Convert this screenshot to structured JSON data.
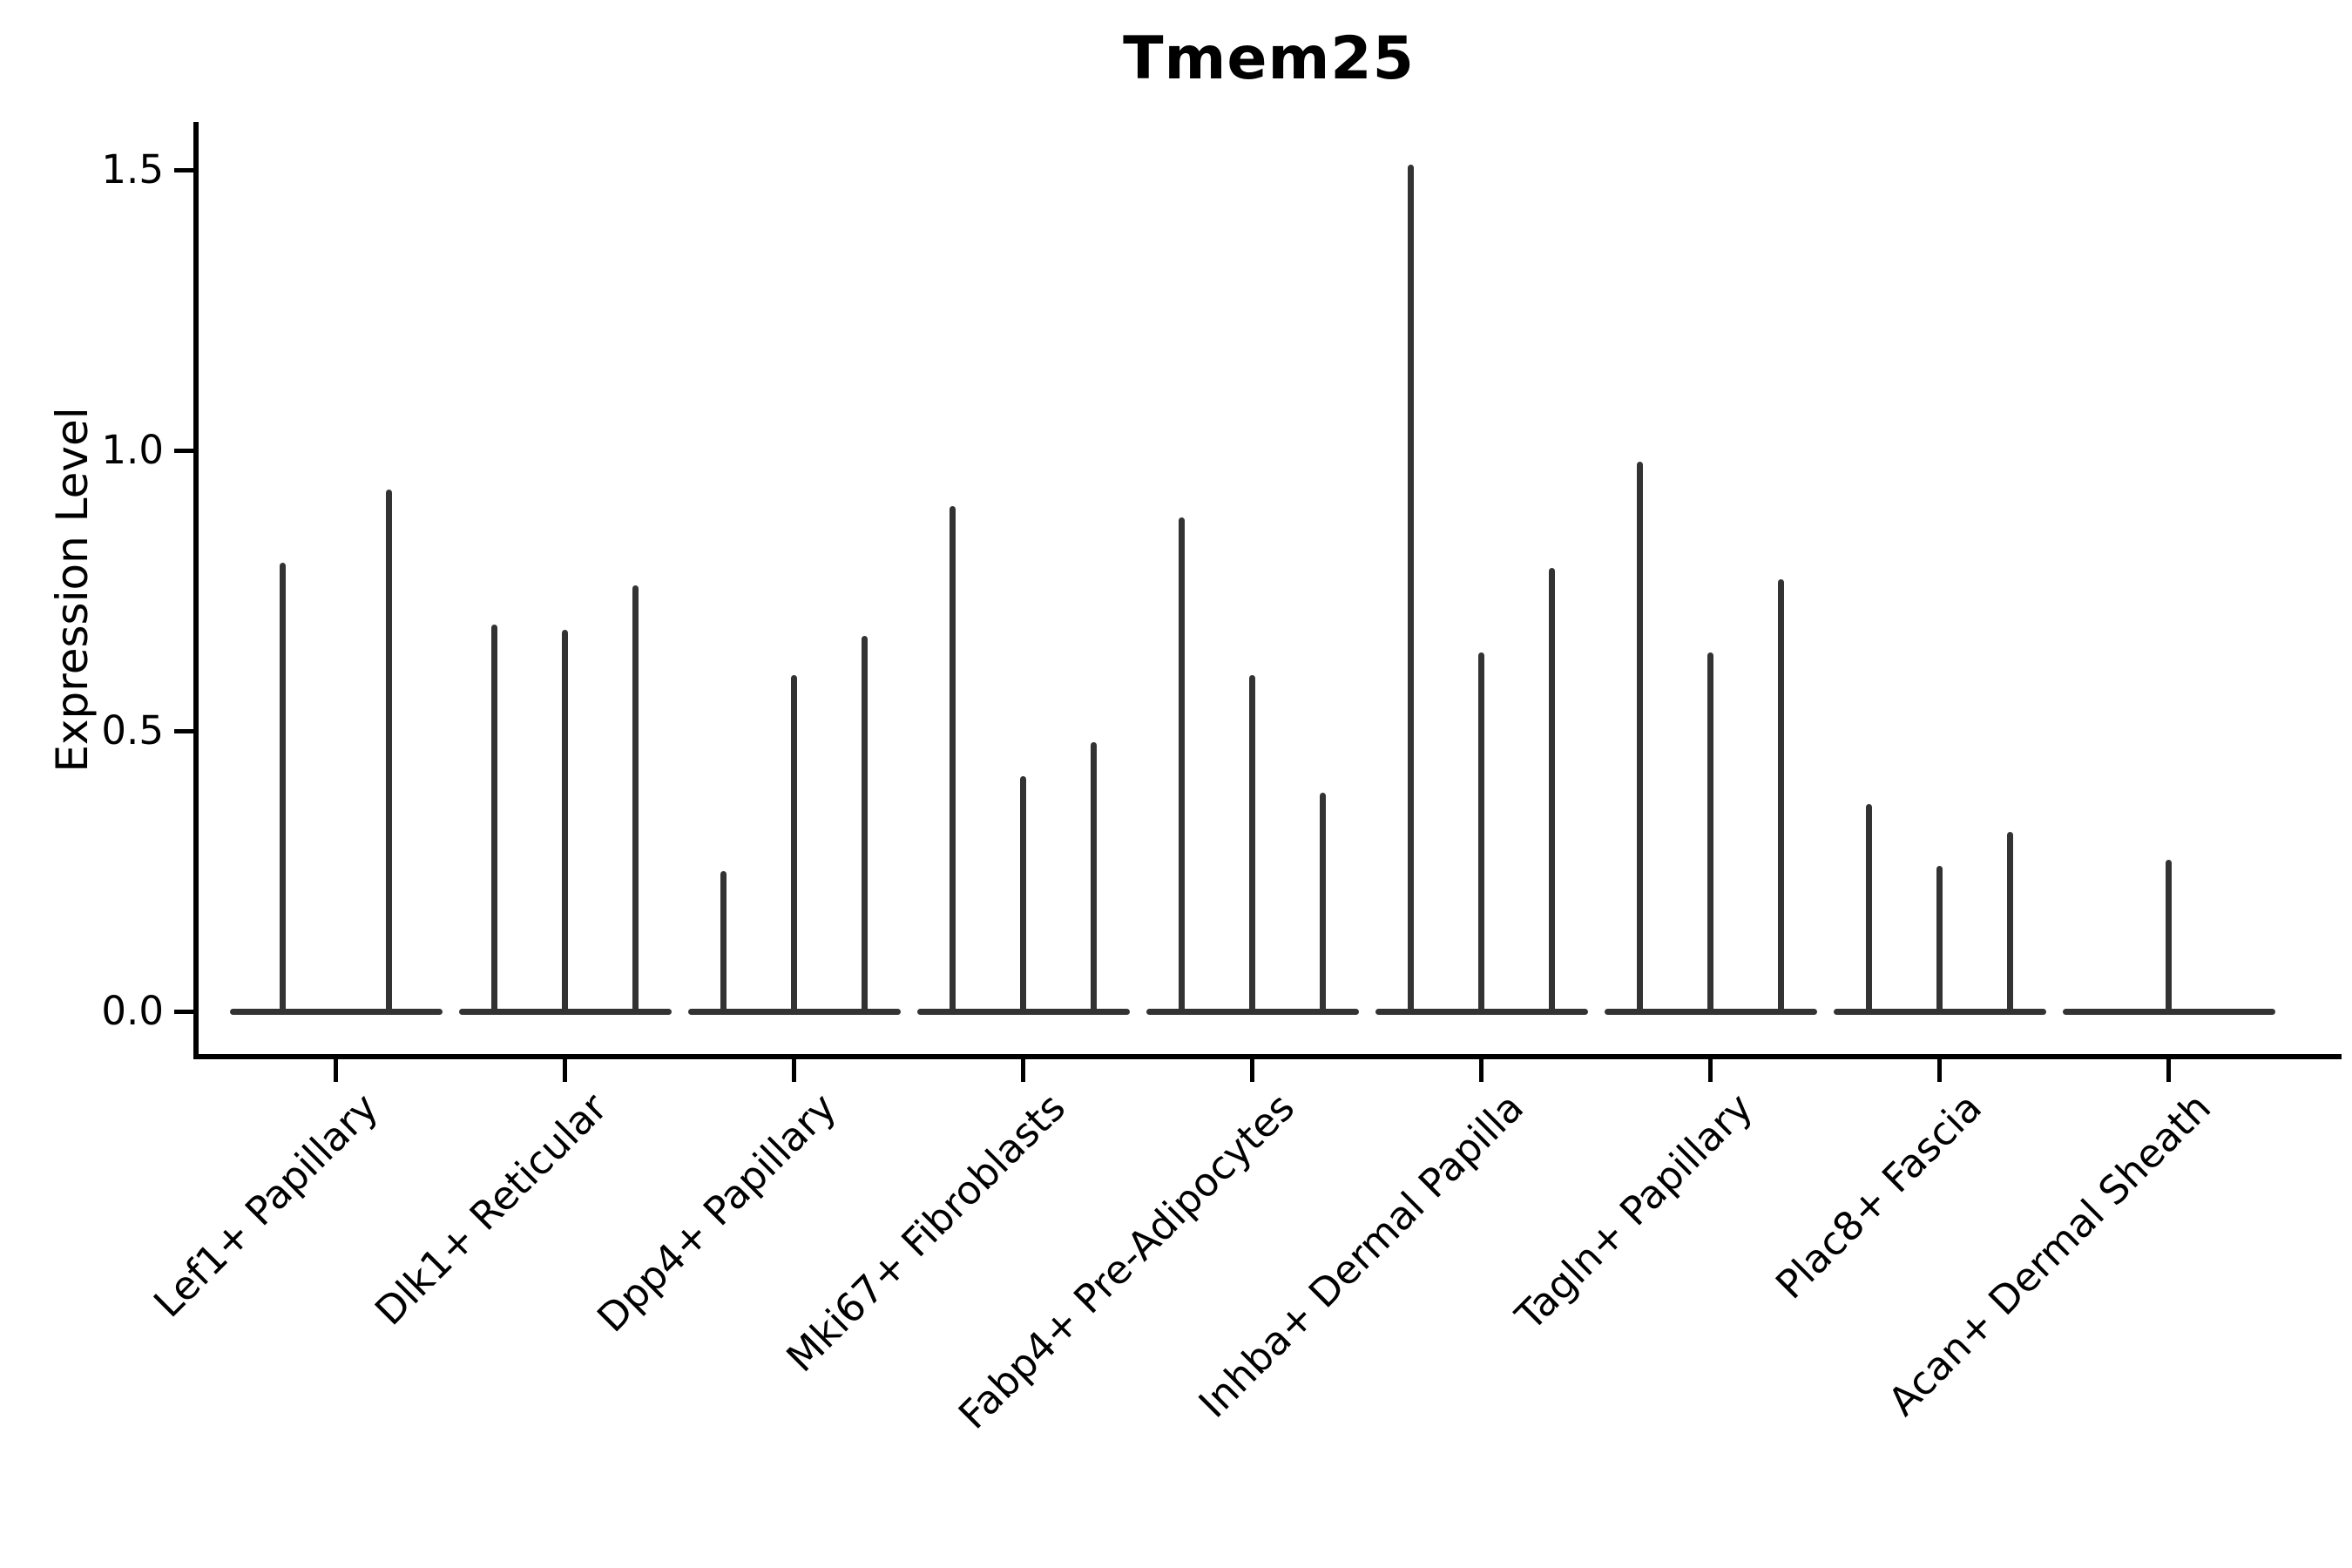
{
  "figure": {
    "title": "Tmem25",
    "ylabel": "Expression Level"
  },
  "chart_data": {
    "type": "violin",
    "title": "Tmem25",
    "xlabel": "",
    "ylabel": "Expression Level",
    "yticks": [
      0.0,
      0.5,
      1.0,
      1.5
    ],
    "ylim": [
      -0.08,
      1.59
    ],
    "grid": false,
    "legend": "none",
    "description": "Thin spike violins (sparse single-cell expression); each category shows flat zero baseline with narrow vertical density spikes whose tops mark the max expression.",
    "categories": [
      "Lef1+ Papillary",
      "Dlk1+ Reticular",
      "Dpp4+ Papillary",
      "Mki67+ Fibroblasts",
      "Fabp4+ Pre-Adipocytes",
      "Inhba+ Dermal Papilla",
      "Tagln+ Papillary",
      "Plac8+ Fascia",
      "Acan+ Dermal Sheath"
    ],
    "groups": [
      {
        "category": "Lef1+ Papillary",
        "violin_peaks": [
          0.8,
          0.93
        ]
      },
      {
        "category": "Dlk1+ Reticular",
        "violin_peaks": [
          0.69,
          0.68,
          0.76
        ]
      },
      {
        "category": "Dpp4+ Papillary",
        "violin_peaks": [
          0.25,
          0.6,
          0.67
        ]
      },
      {
        "category": "Mki67+ Fibroblasts",
        "violin_peaks": [
          0.9,
          0.42,
          0.48
        ]
      },
      {
        "category": "Fabp4+ Pre-Adipocytes",
        "violin_peaks": [
          0.88,
          0.6,
          0.39
        ]
      },
      {
        "category": "Inhba+ Dermal Papilla",
        "violin_peaks": [
          1.51,
          0.64,
          0.79
        ]
      },
      {
        "category": "Tagln+ Papillary",
        "violin_peaks": [
          0.98,
          0.64,
          0.77
        ]
      },
      {
        "category": "Plac8+ Fascia",
        "violin_peaks": [
          0.37,
          0.26,
          0.32
        ]
      },
      {
        "category": "Acan+ Dermal Sheath",
        "violin_peaks": [
          0,
          0.27,
          0
        ]
      }
    ],
    "colors": {
      "line": "#333333",
      "axis": "#000000",
      "background": "#ffffff"
    }
  }
}
